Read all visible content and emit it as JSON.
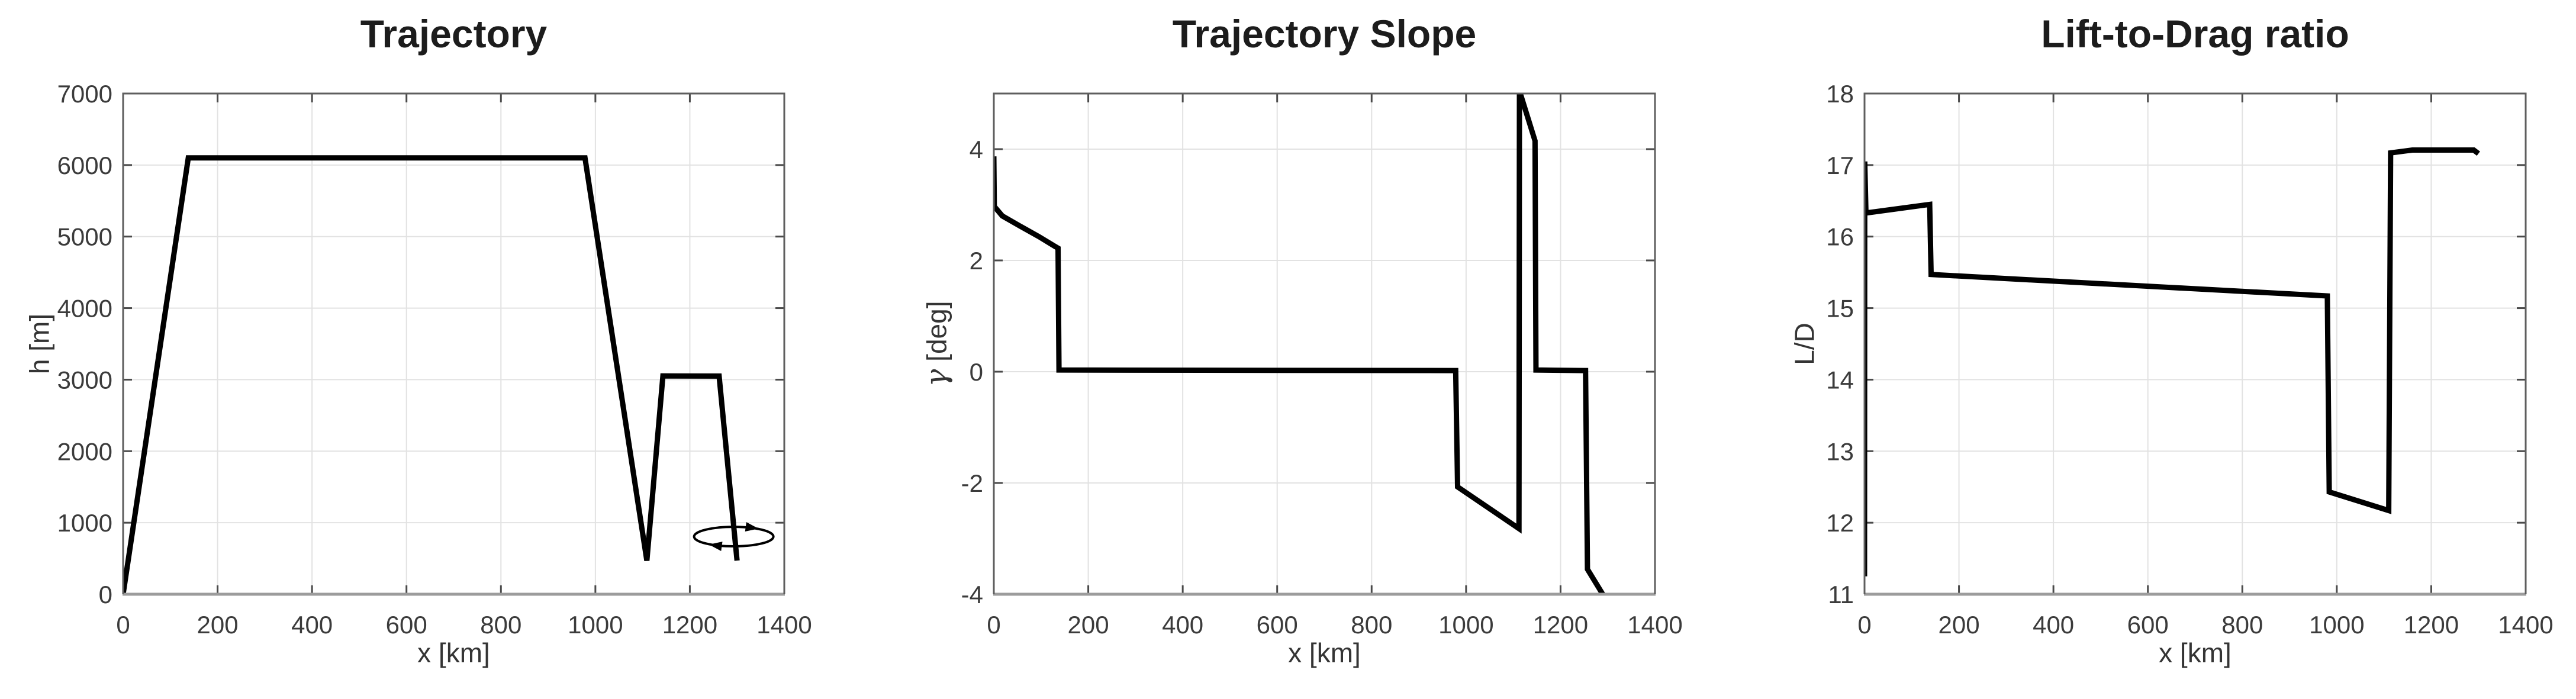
{
  "figure": {
    "background_color": "#ffffff",
    "description": "Three MATLAB-style line plots of an aircraft mission profile versus ground distance"
  },
  "style": {
    "line_color": "#000000",
    "grid_color": "#e2e2e2",
    "axis_box_color": "#5e5e5e",
    "axis_bottom_color": "#9c9c9c",
    "tick_color": "#4a4a4a",
    "tick_label_color": "#3b3b3b",
    "title_color": "#1c1c1c",
    "axis_label_color": "#343434"
  },
  "chart_data": [
    {
      "type": "line",
      "title": "Trajectory",
      "xlabel": "x [km]",
      "ylabel": "h [m]",
      "ylabel_symbol": "",
      "ylabel_rest": "h [m]",
      "xlim": [
        0,
        1400
      ],
      "ylim": [
        0,
        7000
      ],
      "xticks": [
        0,
        200,
        400,
        600,
        800,
        1000,
        1200,
        1400
      ],
      "yticks": [
        0,
        1000,
        2000,
        3000,
        4000,
        5000,
        6000,
        7000
      ],
      "grid": true,
      "legend": null,
      "series": [
        {
          "name": "altitude-profile",
          "x": [
            0,
            138,
            978,
            1109,
            1143,
            1262,
            1300
          ],
          "y": [
            0,
            6100,
            6100,
            470,
            3052,
            3050,
            470
          ]
        }
      ],
      "annotation": {
        "type": "loiter-ellipse",
        "cx": 1293,
        "cy": 806,
        "rx": 84,
        "ry": 136
      }
    },
    {
      "type": "line",
      "title": "Trajectory Slope",
      "xlabel": "x [km]",
      "ylabel": "γ [deg]",
      "ylabel_symbol": "γ",
      "ylabel_rest": " [deg]",
      "xlim": [
        0,
        1400
      ],
      "ylim": [
        -4,
        5
      ],
      "xticks": [
        0,
        200,
        400,
        600,
        800,
        1000,
        1200,
        1400
      ],
      "yticks": [
        -4,
        -2,
        0,
        2,
        4
      ],
      "grid": true,
      "legend": null,
      "series": [
        {
          "name": "flight-path-angle",
          "x": [
            0,
            1,
            18,
            55,
            95,
            126,
            136,
            138,
            978,
            982,
            1112,
            1113,
            1146,
            1148,
            1253,
            1257,
            1298
          ],
          "y": [
            3.87,
            2.97,
            2.8,
            2.62,
            2.43,
            2.27,
            2.22,
            0.03,
            0.02,
            -2.07,
            -2.82,
            5.05,
            4.15,
            0.03,
            0.02,
            -3.55,
            -4.12
          ]
        }
      ],
      "annotation": null
    },
    {
      "type": "line",
      "title": "Lift-to-Drag ratio",
      "xlabel": "x [km]",
      "ylabel": "L/D",
      "ylabel_symbol": "",
      "ylabel_rest": "L/D",
      "xlim": [
        0,
        1400
      ],
      "ylim": [
        11,
        18
      ],
      "xticks": [
        0,
        200,
        400,
        600,
        800,
        1000,
        1200,
        1400
      ],
      "yticks": [
        11,
        12,
        13,
        14,
        15,
        16,
        17,
        18
      ],
      "grid": true,
      "legend": null,
      "series": [
        {
          "name": "lift-to-drag",
          "x": [
            0,
            0.5,
            3,
            138,
            141,
            980,
            984,
            1110,
            1114,
            1160,
            1290,
            1300
          ],
          "y": [
            11.25,
            17.05,
            16.33,
            16.45,
            15.47,
            15.17,
            12.43,
            12.17,
            17.17,
            17.21,
            17.21,
            17.16
          ]
        }
      ],
      "annotation": null
    }
  ]
}
